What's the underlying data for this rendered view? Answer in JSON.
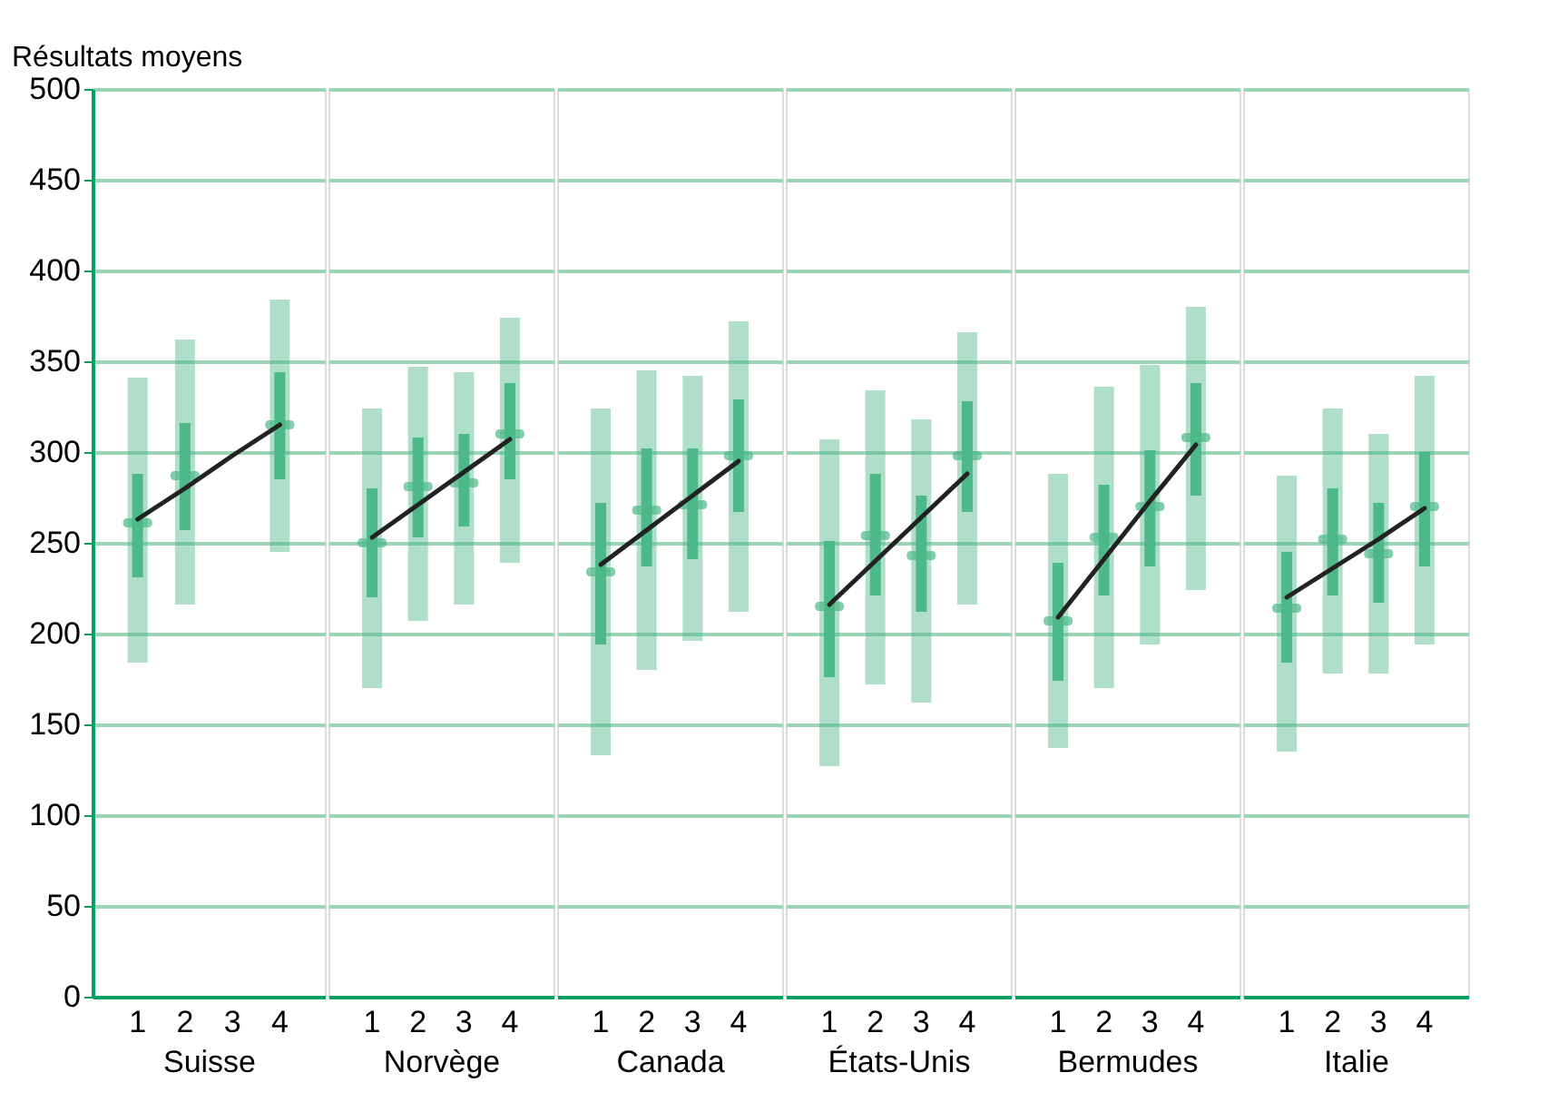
{
  "chart_data": [
    {
      "type": "box",
      "ylabel": "Résultats moyens",
      "xlabel": "Suisse",
      "categories": [
        "1",
        "2",
        "3",
        "4"
      ],
      "ylim": [
        0,
        500
      ],
      "yticks": [
        0,
        50,
        100,
        150,
        200,
        250,
        300,
        350,
        400,
        450,
        500
      ],
      "grid": "y",
      "series": [
        {
          "type": "box",
          "color": "#4db888",
          "boxes": [
            {
              "low": 184,
              "q1": 231,
              "median": 261,
              "q3": 288,
              "high": 341
            },
            {
              "low": 216,
              "q1": 257,
              "median": 287,
              "q3": 316,
              "high": 362
            },
            null,
            {
              "low": 245,
              "q1": 285,
              "median": 315,
              "q3": 344,
              "high": 384
            }
          ]
        },
        {
          "type": "line",
          "color": "#222222",
          "values": [
            263,
            280,
            298,
            315
          ]
        }
      ]
    },
    {
      "type": "box",
      "xlabel": "Norvège",
      "categories": [
        "1",
        "2",
        "3",
        "4"
      ],
      "ylim": [
        0,
        500
      ],
      "yticks": [
        0,
        50,
        100,
        150,
        200,
        250,
        300,
        350,
        400,
        450,
        500
      ],
      "grid": "y",
      "tick_labels": "x",
      "series": [
        {
          "type": "box",
          "color": "#4db888",
          "boxes": [
            {
              "low": 170,
              "q1": 220,
              "median": 250,
              "q3": 280,
              "high": 324
            },
            {
              "low": 207,
              "q1": 253,
              "median": 281,
              "q3": 308,
              "high": 347
            },
            {
              "low": 216,
              "q1": 259,
              "median": 283,
              "q3": 310,
              "high": 344
            },
            {
              "low": 239,
              "q1": 285,
              "median": 310,
              "q3": 338,
              "high": 374
            }
          ]
        },
        {
          "type": "line",
          "color": "#222222",
          "values": [
            253,
            271,
            289,
            307
          ]
        }
      ]
    },
    {
      "type": "box",
      "xlabel": "Canada",
      "categories": [
        "1",
        "2",
        "3",
        "4"
      ],
      "ylim": [
        0,
        500
      ],
      "yticks": [
        0,
        50,
        100,
        150,
        200,
        250,
        300,
        350,
        400,
        450,
        500
      ],
      "grid": "y",
      "tick_labels": "x",
      "series": [
        {
          "type": "box",
          "color": "#4db888",
          "boxes": [
            {
              "low": 133,
              "q1": 194,
              "median": 234,
              "q3": 272,
              "high": 324
            },
            {
              "low": 180,
              "q1": 237,
              "median": 268,
              "q3": 302,
              "high": 345
            },
            {
              "low": 196,
              "q1": 241,
              "median": 271,
              "q3": 302,
              "high": 342
            },
            {
              "low": 212,
              "q1": 267,
              "median": 298,
              "q3": 329,
              "high": 372
            }
          ]
        },
        {
          "type": "line",
          "color": "#222222",
          "values": [
            238,
            257,
            276,
            295
          ]
        }
      ]
    },
    {
      "type": "box",
      "xlabel": "États-Unis",
      "categories": [
        "1",
        "2",
        "3",
        "4"
      ],
      "ylim": [
        0,
        500
      ],
      "yticks": [
        0,
        50,
        100,
        150,
        200,
        250,
        300,
        350,
        400,
        450,
        500
      ],
      "grid": "y",
      "tick_labels": "x",
      "series": [
        {
          "type": "box",
          "color": "#4db888",
          "boxes": [
            {
              "low": 127,
              "q1": 176,
              "median": 215,
              "q3": 251,
              "high": 307
            },
            {
              "low": 172,
              "q1": 221,
              "median": 254,
              "q3": 288,
              "high": 334
            },
            {
              "low": 162,
              "q1": 212,
              "median": 243,
              "q3": 276,
              "high": 318
            },
            {
              "low": 216,
              "q1": 267,
              "median": 298,
              "q3": 328,
              "high": 366
            }
          ]
        },
        {
          "type": "line",
          "color": "#222222",
          "values": [
            216,
            240,
            264,
            288
          ]
        }
      ]
    },
    {
      "type": "box",
      "xlabel": "Bermudes",
      "categories": [
        "1",
        "2",
        "3",
        "4"
      ],
      "ylim": [
        0,
        500
      ],
      "yticks": [
        0,
        50,
        100,
        150,
        200,
        250,
        300,
        350,
        400,
        450,
        500
      ],
      "grid": "y",
      "tick_labels": "x",
      "series": [
        {
          "type": "box",
          "color": "#4db888",
          "boxes": [
            {
              "low": 137,
              "q1": 174,
              "median": 207,
              "q3": 239,
              "high": 288
            },
            {
              "low": 170,
              "q1": 221,
              "median": 253,
              "q3": 282,
              "high": 336
            },
            {
              "low": 194,
              "q1": 237,
              "median": 270,
              "q3": 301,
              "high": 348
            },
            {
              "low": 224,
              "q1": 276,
              "median": 308,
              "q3": 338,
              "high": 380
            }
          ]
        },
        {
          "type": "line",
          "color": "#222222",
          "values": [
            209,
            241,
            273,
            304
          ]
        }
      ]
    },
    {
      "type": "box",
      "xlabel": "Italie",
      "categories": [
        "1",
        "2",
        "3",
        "4"
      ],
      "ylim": [
        0,
        500
      ],
      "yticks": [
        0,
        50,
        100,
        150,
        200,
        250,
        300,
        350,
        400,
        450,
        500
      ],
      "grid": "y",
      "tick_labels": "x",
      "series": [
        {
          "type": "box",
          "color": "#4db888",
          "boxes": [
            {
              "low": 135,
              "q1": 184,
              "median": 214,
              "q3": 245,
              "high": 287
            },
            {
              "low": 178,
              "q1": 221,
              "median": 252,
              "q3": 280,
              "high": 324
            },
            {
              "low": 178,
              "q1": 217,
              "median": 244,
              "q3": 272,
              "high": 310
            },
            {
              "low": 194,
              "q1": 237,
              "median": 270,
              "q3": 300,
              "high": 342
            }
          ]
        },
        {
          "type": "line",
          "color": "#222222",
          "values": [
            220,
            236,
            252,
            269
          ]
        }
      ]
    }
  ]
}
